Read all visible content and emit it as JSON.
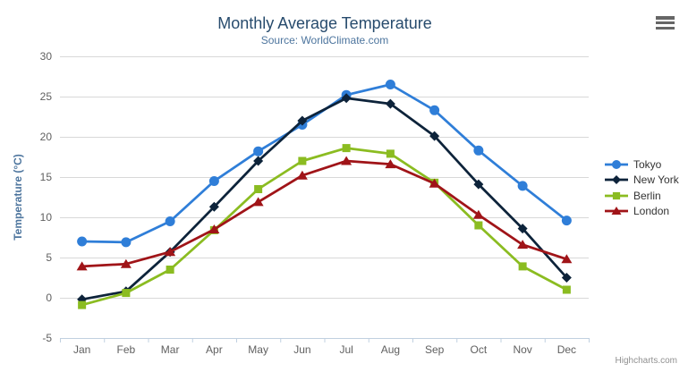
{
  "chart": {
    "title": "Monthly Average Temperature",
    "subtitle": "Source: WorldClimate.com",
    "credit_label": "Highcharts.com",
    "colors": {
      "title": "#274b6d",
      "subtitle": "#4d759e",
      "axis_label": "#606060",
      "axis_title": "#4d759e",
      "grid_line": "#d8d8d8",
      "axis_line": "#c0d0e0",
      "legend_text": "#333333",
      "credit": "#909090",
      "menu_icon": "#666666"
    }
  },
  "chart_data": {
    "type": "line",
    "title": "Monthly Average Temperature",
    "subtitle": "Source: WorldClimate.com",
    "categories": [
      "Jan",
      "Feb",
      "Mar",
      "Apr",
      "May",
      "Jun",
      "Jul",
      "Aug",
      "Sep",
      "Oct",
      "Nov",
      "Dec"
    ],
    "xlabel": "",
    "ylabel": "Temperature (°C)",
    "ylim": [
      -5,
      30
    ],
    "ytick_step": 5,
    "grid": true,
    "legend_position": "right",
    "series": [
      {
        "name": "Tokyo",
        "color": "#2f7ed8",
        "marker": "circle",
        "values": [
          7.0,
          6.9,
          9.5,
          14.5,
          18.2,
          21.5,
          25.2,
          26.5,
          23.3,
          18.3,
          13.9,
          9.6
        ]
      },
      {
        "name": "New York",
        "color": "#0d233a",
        "marker": "diamond",
        "values": [
          -0.2,
          0.8,
          5.7,
          11.3,
          17.0,
          22.0,
          24.8,
          24.1,
          20.1,
          14.1,
          8.6,
          2.5
        ]
      },
      {
        "name": "Berlin",
        "color": "#8bbc21",
        "marker": "square",
        "values": [
          -0.9,
          0.6,
          3.5,
          8.4,
          13.5,
          17.0,
          18.6,
          17.9,
          14.3,
          9.0,
          3.9,
          1.0
        ]
      },
      {
        "name": "London",
        "color": "#a01418",
        "marker": "triangle",
        "values": [
          3.9,
          4.2,
          5.7,
          8.5,
          11.9,
          15.2,
          17.0,
          16.6,
          14.2,
          10.3,
          6.6,
          4.8
        ]
      }
    ]
  }
}
